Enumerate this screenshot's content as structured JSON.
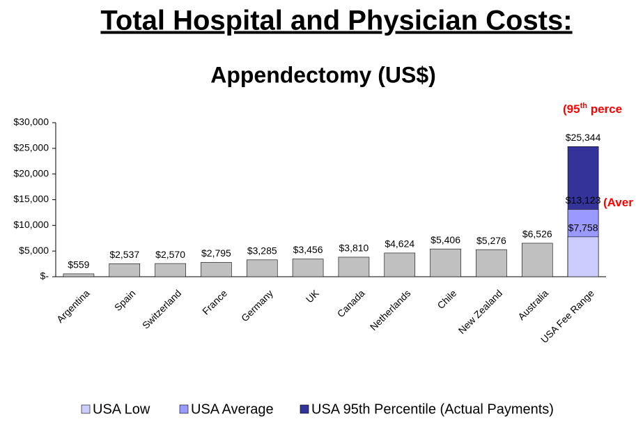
{
  "chart_data": {
    "type": "bar",
    "title": "Total Hospital and Physician Costs:",
    "subtitle": "Appendectomy (US$)",
    "categories": [
      "Argentina",
      "Spain",
      "Switzerland",
      "France",
      "Germany",
      "UK",
      "Canada",
      "Netherlands",
      "Chile",
      "New Zealand",
      "Australia",
      "USA Fee Range"
    ],
    "values": [
      559,
      2537,
      2570,
      2795,
      3285,
      3456,
      3810,
      4624,
      5406,
      5276,
      6526,
      null
    ],
    "value_labels": [
      "$559",
      "$2,537",
      "$2,570",
      "$2,795",
      "$3,285",
      "$3,456",
      "$3,810",
      "$4,624",
      "$5,406",
      "$5,276",
      "$6,526",
      null
    ],
    "color": "#c0c0c0",
    "series": [
      {
        "name": "USA 95th Percentile (Actual Payments)",
        "color": "#333399",
        "values": [
          null,
          null,
          null,
          null,
          null,
          null,
          null,
          null,
          null,
          null,
          null,
          25344
        ],
        "value_labels": [
          null,
          null,
          null,
          null,
          null,
          null,
          null,
          null,
          null,
          null,
          null,
          "$25,344"
        ]
      },
      {
        "name": "USA Average",
        "color": "#9999ff",
        "values": [
          null,
          null,
          null,
          null,
          null,
          null,
          null,
          null,
          null,
          null,
          null,
          13123
        ],
        "value_labels": [
          null,
          null,
          null,
          null,
          null,
          null,
          null,
          null,
          null,
          null,
          null,
          "$13,123"
        ]
      },
      {
        "name": "USA Low",
        "color": "#ccccff",
        "values": [
          null,
          null,
          null,
          null,
          null,
          null,
          null,
          null,
          null,
          null,
          null,
          7758
        ],
        "value_labels": [
          null,
          null,
          null,
          null,
          null,
          null,
          null,
          null,
          null,
          null,
          null,
          "$7,758"
        ]
      }
    ],
    "legend_order": [
      2,
      1,
      0
    ],
    "ylim": [
      0,
      30000
    ],
    "yticks": [
      {
        "value": 0,
        "label": "$-"
      },
      {
        "value": 5000,
        "label": "$5,000"
      },
      {
        "value": 10000,
        "label": "$10,000"
      },
      {
        "value": 15000,
        "label": "$15,000"
      },
      {
        "value": 20000,
        "label": "$20,000"
      },
      {
        "value": 25000,
        "label": "$25,000"
      },
      {
        "value": 30000,
        "label": "$30,000"
      }
    ],
    "grid": false,
    "annotations": [
      {
        "parts": [
          "(95",
          "th",
          " perce"
        ]
      },
      {
        "parts": [
          "(Aver"
        ]
      }
    ]
  }
}
